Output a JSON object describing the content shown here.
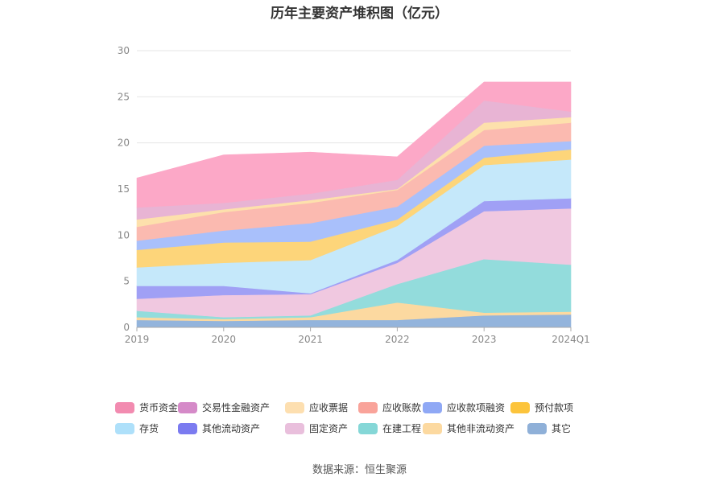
{
  "chart_data": {
    "type": "area",
    "title": "历年主要资产堆积图（亿元）",
    "categories": [
      "2019",
      "2020",
      "2021",
      "2022",
      "2023",
      "2024Q1"
    ],
    "ylim": [
      0,
      30
    ],
    "yticks": [
      0,
      5,
      10,
      15,
      20,
      25,
      30
    ],
    "stacked": true,
    "grid": true,
    "legend_position": "bottom",
    "series": [
      {
        "name": "其它",
        "color": "#93b4dc",
        "values": [
          0.8,
          0.7,
          0.8,
          0.8,
          1.3,
          1.4
        ]
      },
      {
        "name": "其他非流动资产",
        "color": "#fcd9a0",
        "values": [
          0.3,
          0.2,
          0.3,
          1.9,
          0.3,
          0.3
        ]
      },
      {
        "name": "在建工程",
        "color": "#93dcdc",
        "values": [
          0.7,
          0.2,
          0.2,
          2.0,
          5.8,
          5.1
        ]
      },
      {
        "name": "固定资产",
        "color": "#f0c8e0",
        "values": [
          1.3,
          2.4,
          2.3,
          2.3,
          5.2,
          6.1
        ]
      },
      {
        "name": "其他流动资产",
        "color": "#a0a0f5",
        "values": [
          1.4,
          1.0,
          0.1,
          0.3,
          1.1,
          1.1
        ]
      },
      {
        "name": "存货",
        "color": "#c5e8fa",
        "values": [
          2.0,
          2.5,
          3.6,
          3.7,
          3.9,
          4.2
        ]
      },
      {
        "name": "预付款项",
        "color": "#fdd57a",
        "values": [
          1.9,
          2.2,
          2.0,
          0.7,
          0.8,
          1.1
        ]
      },
      {
        "name": "应收款项融资",
        "color": "#a9c0fb",
        "values": [
          1.0,
          1.3,
          2.0,
          1.4,
          1.3,
          0.9
        ]
      },
      {
        "name": "应收账款",
        "color": "#fbbab0",
        "values": [
          1.5,
          2.0,
          2.2,
          1.8,
          1.7,
          2.0
        ]
      },
      {
        "name": "应收票据",
        "color": "#fde0ac",
        "values": [
          0.8,
          0.3,
          0.3,
          0.1,
          0.8,
          0.6
        ]
      },
      {
        "name": "交易性金融资产",
        "color": "#e8b4d4",
        "values": [
          1.3,
          0.7,
          0.7,
          1.0,
          2.4,
          0.6
        ]
      },
      {
        "name": "货币资金",
        "color": "#fca8c7",
        "values": [
          3.2,
          5.2,
          4.5,
          2.5,
          2.0,
          3.2
        ]
      }
    ],
    "legend_order": [
      "货币资金",
      "交易性金融资产",
      "应收票据",
      "应收账款",
      "应收款项融资",
      "预付款项",
      "存货",
      "其他流动资产",
      "固定资产",
      "在建工程",
      "其他非流动资产",
      "其它"
    ],
    "legend_colors": {
      "货币资金": "#f28bb0",
      "交易性金融资产": "#d58ac8",
      "应收票据": "#fddfb0",
      "应收账款": "#f9a39a",
      "应收款项融资": "#8fa8f5",
      "预付款项": "#fcc43c",
      "存货": "#aee0fa",
      "其他流动资产": "#7b7bf0",
      "固定资产": "#e9bfdc",
      "在建工程": "#85d7d7",
      "其他非流动资产": "#fcd9a0",
      "其它": "#8fb0d8"
    }
  },
  "source": "数据来源：恒生聚源"
}
